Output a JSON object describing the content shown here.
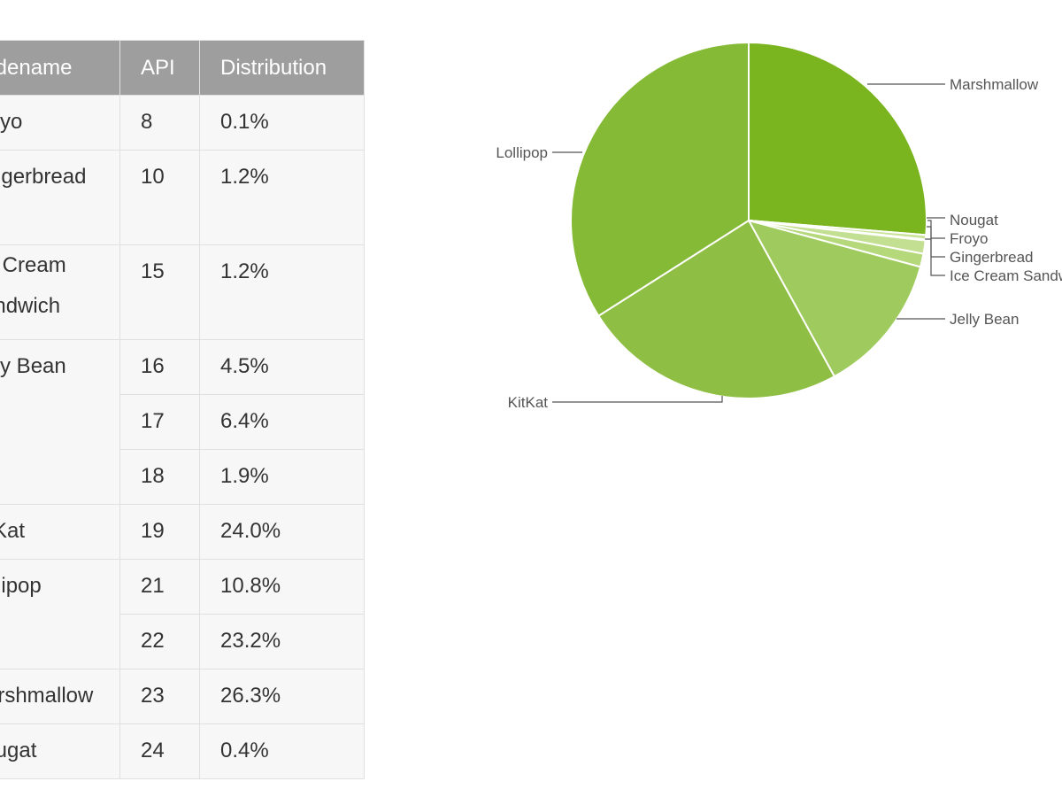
{
  "table": {
    "headers": [
      "Codename",
      "API",
      "Distribution"
    ],
    "rows": [
      {
        "codename": "Froyo",
        "api": "8",
        "dist": "0.1%"
      },
      {
        "codename": "Gingerbread",
        "api": "10",
        "dist": "1.2%"
      },
      {
        "codename": "Ice Cream Sandwich",
        "api": "15",
        "dist": "1.2%"
      },
      {
        "codename": "Jelly Bean",
        "api": "16",
        "dist": "4.5%"
      },
      {
        "codename": "",
        "api": "17",
        "dist": "6.4%"
      },
      {
        "codename": "",
        "api": "18",
        "dist": "1.9%"
      },
      {
        "codename": "KitKat",
        "api": "19",
        "dist": "24.0%"
      },
      {
        "codename": "Lollipop",
        "api": "21",
        "dist": "10.8%"
      },
      {
        "codename": "",
        "api": "22",
        "dist": "23.2%"
      },
      {
        "codename": "Marshmallow",
        "api": "23",
        "dist": "26.3%"
      },
      {
        "codename": "Nougat",
        "api": "24",
        "dist": "0.4%"
      }
    ]
  },
  "chart_data": {
    "type": "pie",
    "start_angle_deg": 0,
    "direction": "clockwise",
    "slices": [
      {
        "label": "Marshmallow",
        "value": 26.3,
        "color": "#7ab41f"
      },
      {
        "label": "Nougat",
        "value": 0.4,
        "color": "#c9e49a"
      },
      {
        "label": "Froyo",
        "value": 0.1,
        "color": "#d6eab2"
      },
      {
        "label": "Gingerbread",
        "value": 1.2,
        "color": "#c3df92"
      },
      {
        "label": "Ice Cream Sandwich",
        "value": 1.2,
        "color": "#b4d87a"
      },
      {
        "label": "Jelly Bean",
        "value": 12.8,
        "color": "#9fcb5e"
      },
      {
        "label": "KitKat",
        "value": 24.0,
        "color": "#8fbe44"
      },
      {
        "label": "Lollipop",
        "value": 34.0,
        "color": "#84ba35"
      }
    ]
  }
}
